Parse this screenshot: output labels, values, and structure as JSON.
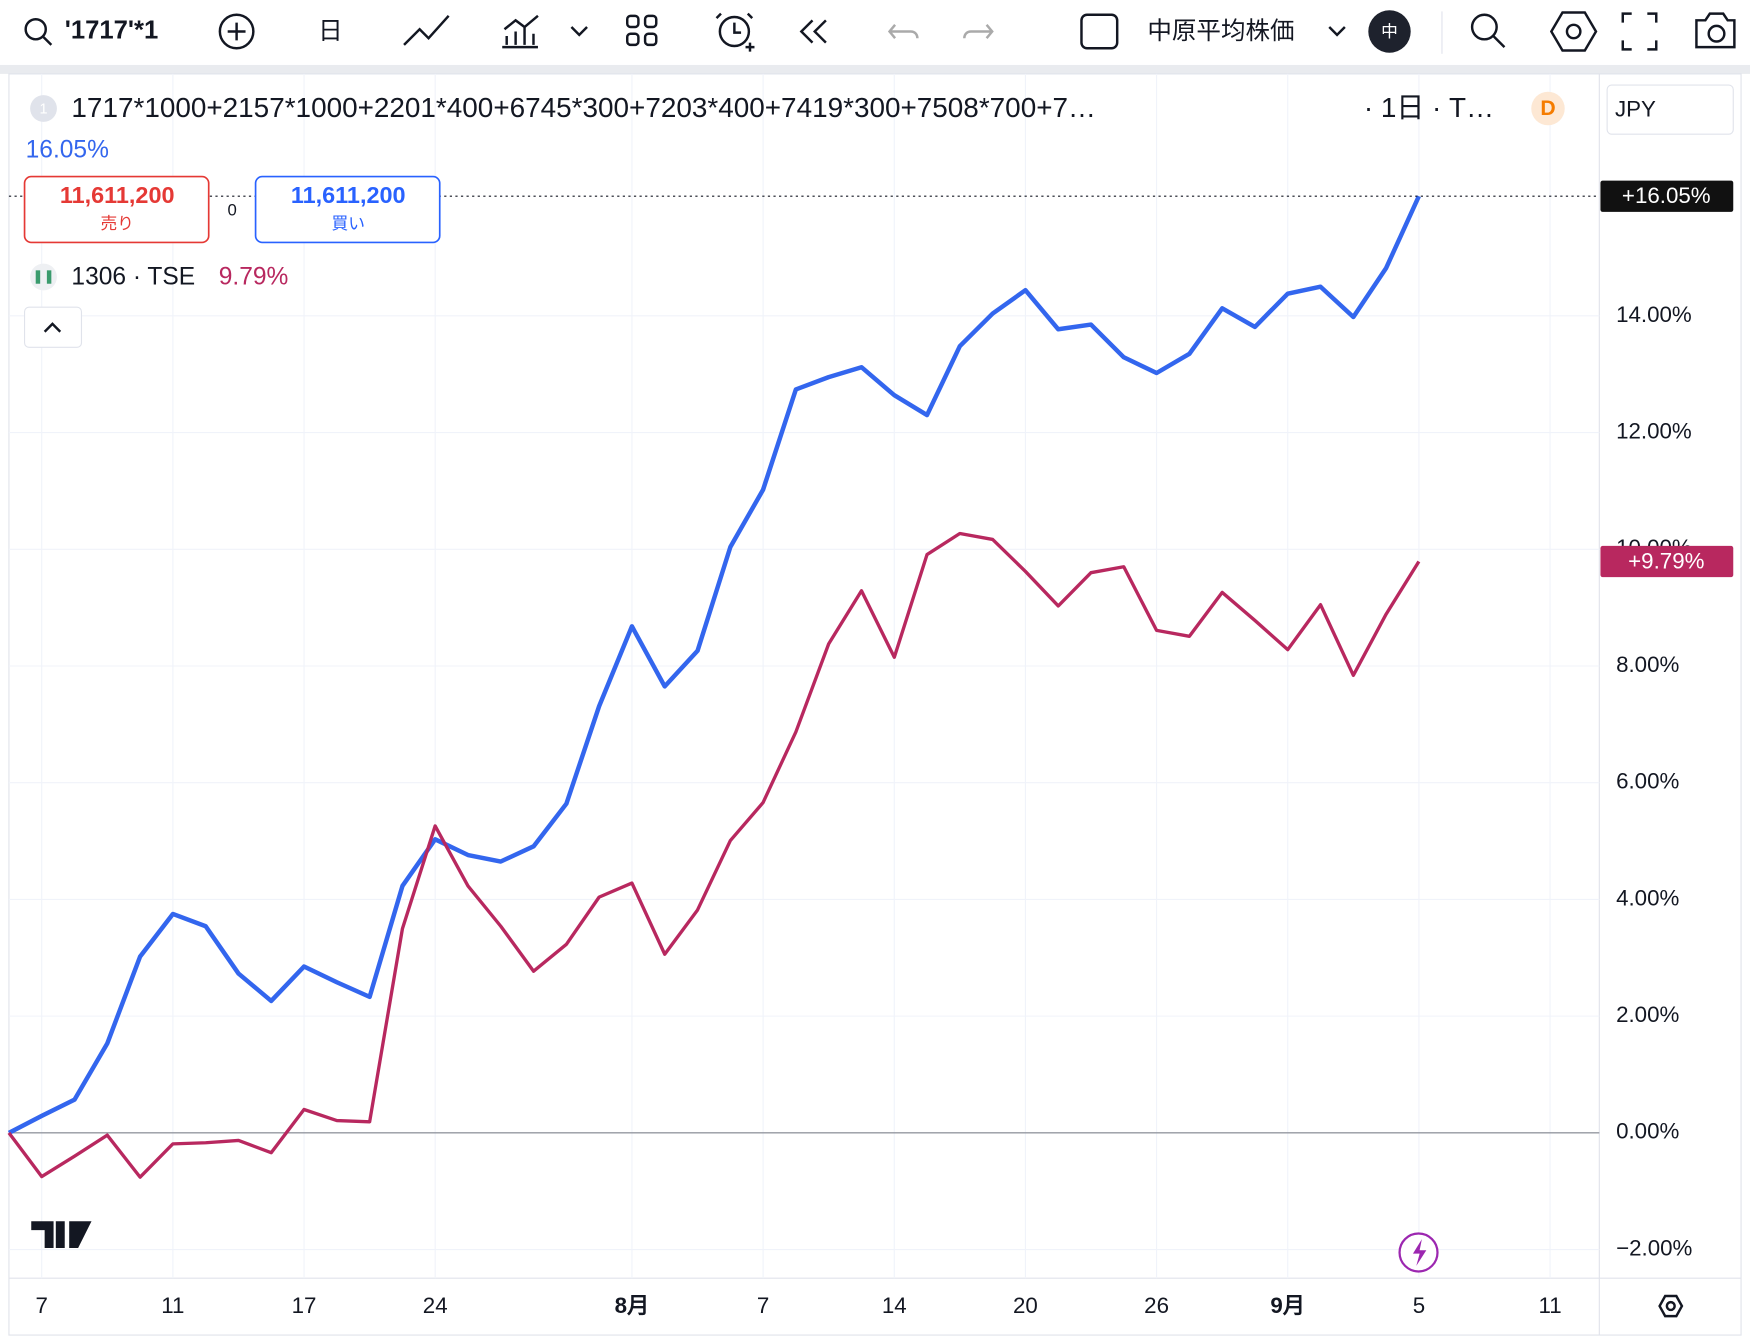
{
  "toolbar": {
    "symbol": "'1717'*1",
    "interval": "日",
    "index_name": "中原平均株価",
    "avatar": "中"
  },
  "header": {
    "pane_number": "1",
    "interval_suffix": "· 1日 · T…",
    "badge": "D",
    "currency": "JPY",
    "sell_price": "11,611,200",
    "sell_label": "売り",
    "spread": "0",
    "buy_price": "11,611,200",
    "buy_label": "買い",
    "main_value": "16.05%",
    "compare_value": "9.79%"
  },
  "chart_data": {
    "type": "line",
    "categories": [
      null,
      "7",
      null,
      null,
      null,
      "11",
      null,
      null,
      null,
      "17",
      null,
      null,
      null,
      "24",
      null,
      null,
      null,
      null,
      null,
      "8月",
      null,
      null,
      null,
      "7",
      null,
      null,
      null,
      "14",
      null,
      null,
      null,
      "20",
      null,
      null,
      null,
      "26",
      null,
      null,
      null,
      "9月",
      null,
      null,
      null,
      "5",
      null,
      null,
      null,
      "11"
    ],
    "series": [
      {
        "name": "1717*1000+2157*1000+2201*400+6745*300+7203*400+7419*300+7508*700+7…",
        "color": "#3366ee",
        "badge_color": "#111111",
        "last_label": "+16.05%",
        "values": [
          0,
          0.29,
          0.57,
          1.53,
          3.02,
          3.75,
          3.54,
          2.73,
          2.26,
          2.85,
          2.58,
          2.33,
          4.23,
          5.03,
          4.76,
          4.65,
          4.91,
          5.64,
          7.31,
          8.68,
          7.65,
          8.26,
          10.04,
          11.02,
          12.74,
          12.95,
          13.12,
          12.64,
          12.3,
          13.48,
          14.04,
          14.44,
          13.77,
          13.85,
          13.29,
          13.02,
          13.35,
          14.13,
          13.81,
          14.38,
          14.5,
          13.98,
          14.82,
          16.05,
          null,
          null,
          null,
          null
        ]
      },
      {
        "name": "1306 · TSE",
        "color": "#b8285f",
        "badge_color": "#b8285f",
        "last_label": "+9.79%",
        "values": [
          0,
          -0.75,
          -0.4,
          -0.04,
          -0.76,
          -0.19,
          -0.17,
          -0.13,
          -0.34,
          0.4,
          0.21,
          0.19,
          3.5,
          5.26,
          4.23,
          3.54,
          2.77,
          3.23,
          4.04,
          4.28,
          3.06,
          3.82,
          5.01,
          5.66,
          6.87,
          8.38,
          9.29,
          8.15,
          9.91,
          10.27,
          10.17,
          9.62,
          9.03,
          9.6,
          9.7,
          8.61,
          8.51,
          9.26,
          8.78,
          8.28,
          9.05,
          7.84,
          8.89,
          9.79,
          null,
          null,
          null,
          null
        ]
      }
    ],
    "ylim": [
      -2.49,
      18.07
    ],
    "yticks": [
      {
        "value": -2,
        "label": "−2.00%"
      },
      {
        "value": 0,
        "label": "0.00%"
      },
      {
        "value": 2,
        "label": "2.00%"
      },
      {
        "value": 4,
        "label": "4.00%"
      },
      {
        "value": 6,
        "label": "6.00%"
      },
      {
        "value": 8,
        "label": "8.00%"
      },
      {
        "value": 10,
        "label": "10.00%"
      },
      {
        "value": 12,
        "label": "12.00%"
      },
      {
        "value": 14,
        "label": "14.00%"
      }
    ],
    "grid": true
  }
}
